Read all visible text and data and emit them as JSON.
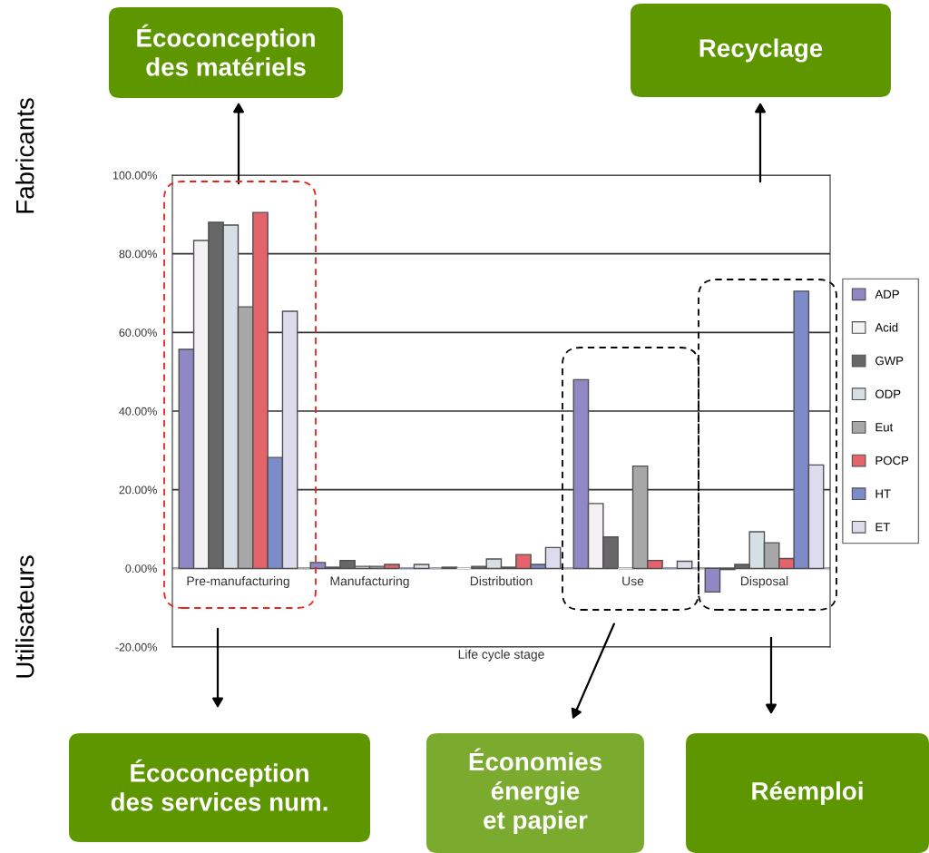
{
  "chart_data": {
    "type": "bar",
    "xlabel": "Life cycle stage",
    "categories": [
      "Pre-manufacturing",
      "Manufacturing",
      "Distribution",
      "Use",
      "Disposal"
    ],
    "series": [
      {
        "name": "ADP",
        "color": "#8f88c4",
        "values": [
          55.7,
          1.5,
          0.3,
          48,
          -6
        ]
      },
      {
        "name": "Acid",
        "color": "#f4f1f4",
        "values": [
          83.4,
          0.3,
          0,
          16.5,
          -0.3
        ]
      },
      {
        "name": "GWP",
        "color": "#676767",
        "values": [
          88,
          2,
          0.5,
          8,
          1
        ]
      },
      {
        "name": "ODP",
        "color": "#d5e0e6",
        "values": [
          87.3,
          0.5,
          2.4,
          0,
          9.3
        ]
      },
      {
        "name": "Eut",
        "color": "#a7a7a7",
        "values": [
          66.5,
          0.5,
          0.3,
          26,
          6.5
        ]
      },
      {
        "name": "POCP",
        "color": "#e5646c",
        "values": [
          90.5,
          1,
          3.5,
          2,
          2.5
        ]
      },
      {
        "name": "HT",
        "color": "#7d8bc8",
        "values": [
          28.2,
          0,
          1,
          0,
          70.5
        ]
      },
      {
        "name": "ET",
        "color": "#dcdcec",
        "values": [
          65.4,
          1,
          5.3,
          1.8,
          26.3
        ]
      }
    ],
    "ylim": [
      -20,
      100
    ],
    "yticks": [
      {
        "value": -20,
        "label": "-20.00%"
      },
      {
        "value": 0,
        "label": "0.00%"
      },
      {
        "value": 20,
        "label": "20.00%"
      },
      {
        "value": 40,
        "label": "40.00%"
      },
      {
        "value": 60,
        "label": "60.00%"
      },
      {
        "value": 80,
        "label": "80.00%"
      },
      {
        "value": 100,
        "label": "100.00%"
      }
    ],
    "grid": "y",
    "legend": "right",
    "annotations": [
      "Fabricants",
      "Utilisateurs",
      "Écoconception\ndes matériels",
      "Recyclage",
      "Écoconception\ndes services num.",
      "Économies\nénergie\net papier",
      "Réemploi"
    ]
  }
}
